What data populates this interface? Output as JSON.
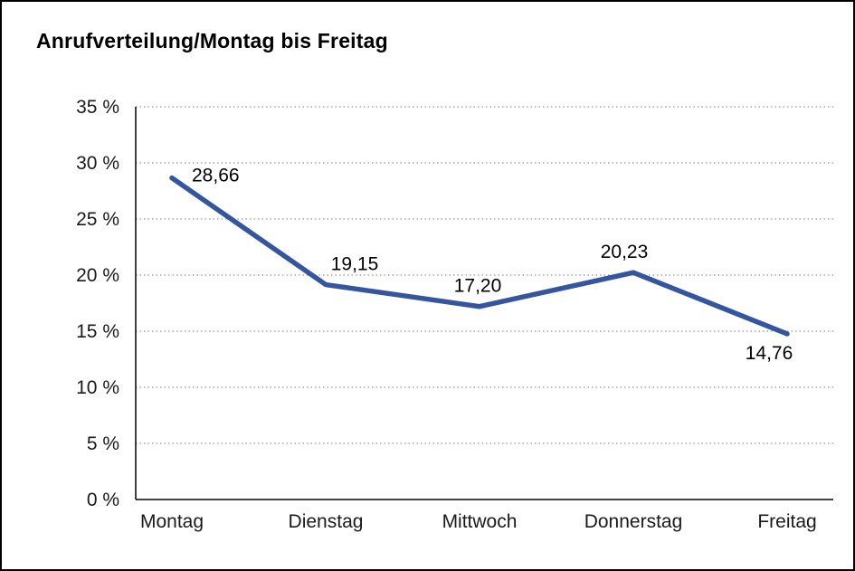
{
  "header": {
    "title": "Anrufverteilung/Montag bis Freitag"
  },
  "chart_data": {
    "type": "line",
    "title": "Anrufverteilung/Montag bis Freitag",
    "categories": [
      "Montag",
      "Dienstag",
      "Mittwoch",
      "Donnerstag",
      "Freitag"
    ],
    "values": [
      28.66,
      19.15,
      17.2,
      20.23,
      14.76
    ],
    "value_labels": [
      "28,66",
      "19,15",
      "17,20",
      "20,23",
      "14,76"
    ],
    "ylabel": "",
    "xlabel": "",
    "ylim": [
      0,
      35
    ],
    "ytick_step": 5,
    "ytick_suffix": " %",
    "grid": "horizontal-dotted",
    "legend": "none",
    "line_color": "#35569E",
    "axis_color": "#000000",
    "grid_color": "#7a7a7a",
    "text_color": "#1a1a1a"
  }
}
